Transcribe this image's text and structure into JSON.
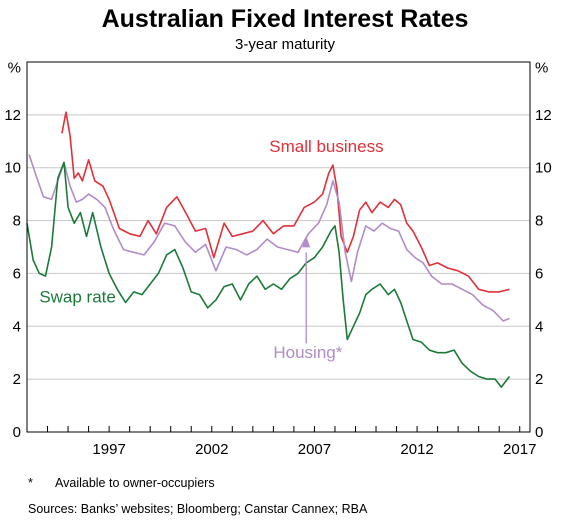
{
  "title": "Australian Fixed Interest Rates",
  "subtitle": "3-year maturity",
  "footnote_marker": "*",
  "footnote": "Available to owner-occupiers",
  "sources": "Sources:  Banks’ websites; Bloomberg; Canstar Cannex; RBA",
  "colors": {
    "small_business": "#e0303a",
    "housing": "#b28cc8",
    "swap_rate": "#1b7a3a",
    "grid": "#c8c8c8",
    "axis": "#000000"
  },
  "chart_data": {
    "type": "line",
    "title": "Australian Fixed Interest Rates",
    "subtitle": "3-year maturity",
    "ylabel_left": "%",
    "ylabel_right": "%",
    "xlim": [
      1993.0,
      2017.5
    ],
    "ylim": [
      0,
      14
    ],
    "x_ticks": [
      1997,
      2002,
      2007,
      2012,
      2017
    ],
    "y_ticks": [
      0,
      2,
      4,
      6,
      8,
      10,
      12
    ],
    "grid": "horizontal",
    "annotations": [
      {
        "text": "Small business",
        "series": "Small business"
      },
      {
        "text": "Housing*",
        "series": "Housing*"
      },
      {
        "text": "Swap rate",
        "series": "Swap rate"
      }
    ],
    "series": [
      {
        "name": "Small business",
        "color": "#e0303a",
        "x": [
          1994.7,
          1994.9,
          1995.1,
          1995.3,
          1995.5,
          1995.7,
          1996.0,
          1996.3,
          1996.7,
          1997.0,
          1997.5,
          1998.0,
          1998.5,
          1998.9,
          1999.3,
          1999.8,
          2000.3,
          2000.8,
          2001.2,
          2001.7,
          2002.1,
          2002.6,
          2003.0,
          2003.5,
          2004.0,
          2004.5,
          2005.0,
          2005.5,
          2006.0,
          2006.5,
          2007.0,
          2007.4,
          2007.7,
          2007.9,
          2008.1,
          2008.3,
          2008.6,
          2008.9,
          2009.2,
          2009.5,
          2009.8,
          2010.2,
          2010.6,
          2010.9,
          2011.2,
          2011.5,
          2011.8,
          2012.2,
          2012.6,
          2013.0,
          2013.5,
          2014.0,
          2014.5,
          2015.0,
          2015.5,
          2016.0,
          2016.5
        ],
        "y": [
          11.3,
          12.1,
          11.2,
          9.6,
          9.8,
          9.5,
          10.3,
          9.5,
          9.3,
          8.8,
          7.7,
          7.5,
          7.4,
          8.0,
          7.5,
          8.5,
          8.9,
          8.2,
          7.6,
          7.7,
          6.6,
          7.9,
          7.4,
          7.5,
          7.6,
          8.0,
          7.5,
          7.8,
          7.8,
          8.5,
          8.7,
          9.0,
          9.8,
          10.1,
          9.2,
          7.4,
          6.8,
          7.4,
          8.4,
          8.7,
          8.3,
          8.7,
          8.5,
          8.8,
          8.6,
          7.9,
          7.6,
          7.0,
          6.3,
          6.4,
          6.2,
          6.1,
          5.9,
          5.4,
          5.3,
          5.3,
          5.4
        ]
      },
      {
        "name": "Housing*",
        "color": "#b28cc8",
        "x": [
          1993.1,
          1993.4,
          1993.8,
          1994.2,
          1994.5,
          1994.8,
          1995.1,
          1995.4,
          1995.7,
          1996.0,
          1996.4,
          1996.8,
          1997.2,
          1997.7,
          1998.2,
          1998.7,
          1999.2,
          1999.7,
          2000.2,
          2000.7,
          2001.2,
          2001.7,
          2002.2,
          2002.7,
          2003.2,
          2003.7,
          2004.2,
          2004.7,
          2005.2,
          2005.7,
          2006.2,
          2006.7,
          2007.2,
          2007.6,
          2007.9,
          2008.2,
          2008.5,
          2008.8,
          2009.1,
          2009.5,
          2009.9,
          2010.3,
          2010.7,
          2011.1,
          2011.5,
          2011.9,
          2012.3,
          2012.7,
          2013.2,
          2013.7,
          2014.2,
          2014.7,
          2015.2,
          2015.7,
          2016.2,
          2016.5
        ],
        "y": [
          10.5,
          9.8,
          8.9,
          8.8,
          9.5,
          10.2,
          9.3,
          8.7,
          8.8,
          9.0,
          8.8,
          8.5,
          7.7,
          6.9,
          6.8,
          6.7,
          7.2,
          7.9,
          7.8,
          7.2,
          6.8,
          7.1,
          6.1,
          7.0,
          6.9,
          6.7,
          6.9,
          7.3,
          7.0,
          6.9,
          6.8,
          7.5,
          7.9,
          8.6,
          9.5,
          8.7,
          6.8,
          5.7,
          6.8,
          7.8,
          7.6,
          7.9,
          7.7,
          7.6,
          6.9,
          6.6,
          6.4,
          5.9,
          5.6,
          5.6,
          5.4,
          5.2,
          4.8,
          4.6,
          4.2,
          4.3
        ]
      },
      {
        "name": "Swap rate",
        "color": "#1b7a3a",
        "x": [
          1993.0,
          1993.3,
          1993.6,
          1993.9,
          1994.2,
          1994.5,
          1994.8,
          1995.0,
          1995.3,
          1995.6,
          1995.9,
          1996.2,
          1996.6,
          1997.0,
          1997.4,
          1997.8,
          1998.2,
          1998.6,
          1999.0,
          1999.4,
          1999.8,
          2000.2,
          2000.6,
          2001.0,
          2001.4,
          2001.8,
          2002.2,
          2002.6,
          2003.0,
          2003.4,
          2003.8,
          2004.2,
          2004.6,
          2005.0,
          2005.4,
          2005.8,
          2006.2,
          2006.6,
          2007.0,
          2007.4,
          2007.8,
          2008.0,
          2008.2,
          2008.4,
          2008.6,
          2008.9,
          2009.2,
          2009.5,
          2009.8,
          2010.2,
          2010.6,
          2010.9,
          2011.2,
          2011.5,
          2011.8,
          2012.2,
          2012.6,
          2013.0,
          2013.4,
          2013.8,
          2014.2,
          2014.6,
          2015.0,
          2015.4,
          2015.8,
          2016.1,
          2016.3,
          2016.5
        ],
        "y": [
          7.9,
          6.5,
          6.0,
          5.9,
          7.0,
          9.6,
          10.2,
          8.5,
          7.9,
          8.3,
          7.4,
          8.3,
          7.0,
          6.0,
          5.4,
          4.9,
          5.3,
          5.2,
          5.6,
          6.0,
          6.7,
          6.9,
          6.2,
          5.3,
          5.2,
          4.7,
          5.0,
          5.5,
          5.6,
          5.0,
          5.6,
          5.9,
          5.4,
          5.6,
          5.4,
          5.8,
          6.0,
          6.4,
          6.6,
          7.0,
          7.6,
          7.8,
          6.8,
          5.0,
          3.5,
          4.0,
          4.5,
          5.2,
          5.4,
          5.6,
          5.2,
          5.4,
          4.9,
          4.2,
          3.5,
          3.4,
          3.1,
          3.0,
          3.0,
          3.1,
          2.6,
          2.3,
          2.1,
          2.0,
          2.0,
          1.7,
          1.9,
          2.1
        ]
      }
    ]
  }
}
